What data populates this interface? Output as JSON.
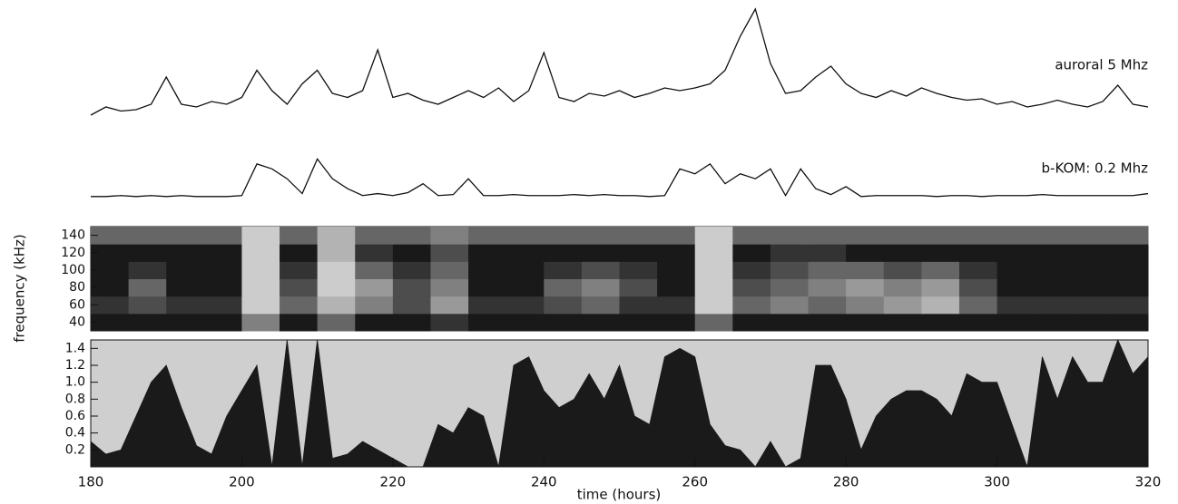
{
  "chart_data": [
    {
      "type": "line",
      "xlim": [
        180,
        320
      ],
      "ylim": [
        0,
        100
      ],
      "x": [
        180,
        182,
        184,
        186,
        188,
        190,
        192,
        194,
        196,
        198,
        200,
        202,
        204,
        206,
        208,
        210,
        212,
        214,
        216,
        218,
        220,
        222,
        224,
        226,
        228,
        230,
        232,
        234,
        236,
        238,
        240,
        242,
        244,
        246,
        248,
        250,
        252,
        254,
        256,
        258,
        260,
        262,
        264,
        266,
        268,
        270,
        272,
        274,
        276,
        278,
        280,
        282,
        284,
        286,
        288,
        290,
        292,
        294,
        296,
        298,
        300,
        302,
        304,
        306,
        308,
        310,
        312,
        314,
        316,
        318,
        320
      ],
      "series": [
        {
          "name": "auroral  5 Mhz",
          "color": "#111111",
          "values": [
            22,
            28,
            25,
            26,
            30,
            50,
            30,
            28,
            32,
            30,
            35,
            55,
            40,
            30,
            45,
            55,
            38,
            35,
            40,
            70,
            35,
            38,
            33,
            30,
            35,
            40,
            35,
            42,
            32,
            40,
            68,
            35,
            32,
            38,
            36,
            40,
            35,
            38,
            42,
            40,
            42,
            45,
            55,
            80,
            100,
            60,
            38,
            40,
            50,
            58,
            45,
            38,
            35,
            40,
            36,
            42,
            38,
            35,
            33,
            34,
            30,
            32,
            28,
            30,
            33,
            30,
            28,
            32,
            44,
            30,
            28
          ]
        },
        {
          "name": "b-KOM: 0.2 Mhz",
          "color": "#111111",
          "values": [
            2,
            2,
            3,
            2,
            3,
            2,
            3,
            2,
            2,
            2,
            3,
            35,
            30,
            20,
            5,
            40,
            20,
            10,
            3,
            5,
            3,
            6,
            15,
            3,
            4,
            20,
            3,
            3,
            4,
            3,
            3,
            3,
            4,
            3,
            4,
            3,
            3,
            2,
            3,
            30,
            25,
            35,
            15,
            25,
            20,
            30,
            3,
            30,
            10,
            4,
            12,
            2,
            3,
            3,
            3,
            3,
            2,
            3,
            3,
            2,
            3,
            3,
            3,
            4,
            3,
            3,
            3,
            3,
            3,
            3,
            5
          ]
        }
      ]
    },
    {
      "type": "heatmap",
      "y_label": "frequency (kHz)",
      "xlim": [
        180,
        320
      ],
      "ylim": [
        30,
        150
      ],
      "yticks": [
        40,
        60,
        80,
        100,
        120,
        140
      ],
      "x_bins": [
        180,
        185,
        190,
        195,
        200,
        205,
        210,
        215,
        220,
        225,
        230,
        235,
        240,
        245,
        250,
        255,
        260,
        265,
        270,
        275,
        280,
        285,
        290,
        295,
        300,
        305,
        310,
        315,
        320
      ],
      "y_bins": [
        30,
        50,
        70,
        90,
        110,
        130,
        150
      ],
      "z": [
        [
          0.9,
          0.9,
          0.9,
          0.9,
          0.5,
          0.9,
          0.6,
          0.9,
          0.9,
          0.8,
          0.9,
          0.9,
          0.9,
          0.9,
          0.9,
          0.9,
          0.6,
          0.9,
          0.9,
          0.9,
          0.9,
          0.9,
          0.9,
          0.9,
          0.9,
          0.9,
          0.9,
          0.9
        ],
        [
          0.8,
          0.7,
          0.8,
          0.8,
          0.2,
          0.6,
          0.3,
          0.5,
          0.7,
          0.4,
          0.8,
          0.8,
          0.7,
          0.6,
          0.8,
          0.8,
          0.2,
          0.6,
          0.5,
          0.6,
          0.5,
          0.4,
          0.3,
          0.6,
          0.8,
          0.8,
          0.8,
          0.8
        ],
        [
          0.9,
          0.6,
          0.9,
          0.9,
          0.2,
          0.7,
          0.2,
          0.4,
          0.7,
          0.5,
          0.9,
          0.9,
          0.6,
          0.5,
          0.7,
          0.9,
          0.2,
          0.7,
          0.6,
          0.5,
          0.4,
          0.5,
          0.4,
          0.7,
          0.9,
          0.9,
          0.9,
          0.9
        ],
        [
          0.9,
          0.8,
          0.9,
          0.9,
          0.2,
          0.8,
          0.2,
          0.6,
          0.8,
          0.6,
          0.9,
          0.9,
          0.8,
          0.7,
          0.8,
          0.9,
          0.2,
          0.8,
          0.7,
          0.6,
          0.6,
          0.7,
          0.6,
          0.8,
          0.9,
          0.9,
          0.9,
          0.9
        ],
        [
          0.9,
          0.9,
          0.9,
          0.9,
          0.2,
          0.9,
          0.3,
          0.8,
          0.9,
          0.7,
          0.9,
          0.9,
          0.9,
          0.9,
          0.9,
          0.9,
          0.2,
          0.9,
          0.8,
          0.8,
          0.9,
          0.9,
          0.9,
          0.9,
          0.9,
          0.9,
          0.9,
          0.9
        ],
        [
          0.6,
          0.6,
          0.6,
          0.6,
          0.2,
          0.6,
          0.3,
          0.6,
          0.6,
          0.5,
          0.6,
          0.6,
          0.6,
          0.6,
          0.6,
          0.6,
          0.2,
          0.6,
          0.6,
          0.6,
          0.6,
          0.6,
          0.6,
          0.6,
          0.6,
          0.6,
          0.6,
          0.6
        ]
      ]
    },
    {
      "type": "area",
      "x_label": "time (hours)",
      "xlim": [
        180,
        320
      ],
      "ylim": [
        0,
        1.5
      ],
      "color": "#1a1a1a",
      "xticks": [
        180,
        200,
        220,
        240,
        260,
        280,
        300,
        320
      ],
      "yticks": [
        0.2,
        0.4,
        0.6,
        0.8,
        {
          "value": 1,
          "label": "1.0"
        },
        1.2,
        1.4
      ],
      "x": [
        180,
        182,
        184,
        186,
        188,
        190,
        192,
        194,
        196,
        198,
        200,
        202,
        204,
        206,
        208,
        210,
        212,
        214,
        216,
        218,
        220,
        222,
        224,
        226,
        228,
        230,
        232,
        234,
        236,
        238,
        240,
        242,
        244,
        246,
        248,
        250,
        252,
        254,
        256,
        258,
        260,
        262,
        264,
        266,
        268,
        270,
        272,
        274,
        276,
        278,
        280,
        282,
        284,
        286,
        288,
        290,
        292,
        294,
        296,
        298,
        300,
        302,
        304,
        306,
        308,
        310,
        312,
        314,
        316,
        318,
        320
      ],
      "values": [
        0.3,
        0.15,
        0.2,
        0.6,
        1.0,
        1.2,
        0.7,
        0.25,
        0.15,
        0.6,
        0.9,
        1.2,
        0.0,
        1.5,
        0.0,
        1.5,
        0.1,
        0.15,
        0.3,
        0.2,
        0.1,
        0.0,
        0.0,
        0.5,
        0.4,
        0.7,
        0.6,
        0.0,
        1.2,
        1.3,
        0.9,
        0.7,
        0.8,
        1.1,
        0.8,
        1.2,
        0.6,
        0.5,
        1.3,
        1.4,
        1.3,
        0.5,
        0.25,
        0.2,
        0.0,
        0.3,
        0.0,
        0.1,
        1.2,
        1.2,
        0.8,
        0.2,
        0.6,
        0.8,
        0.9,
        0.9,
        0.8,
        0.6,
        1.1,
        1.0,
        1.0,
        0.5,
        0.0,
        1.3,
        0.8,
        1.3,
        1.0,
        1.0,
        1.5,
        1.1,
        1.3
      ]
    }
  ]
}
